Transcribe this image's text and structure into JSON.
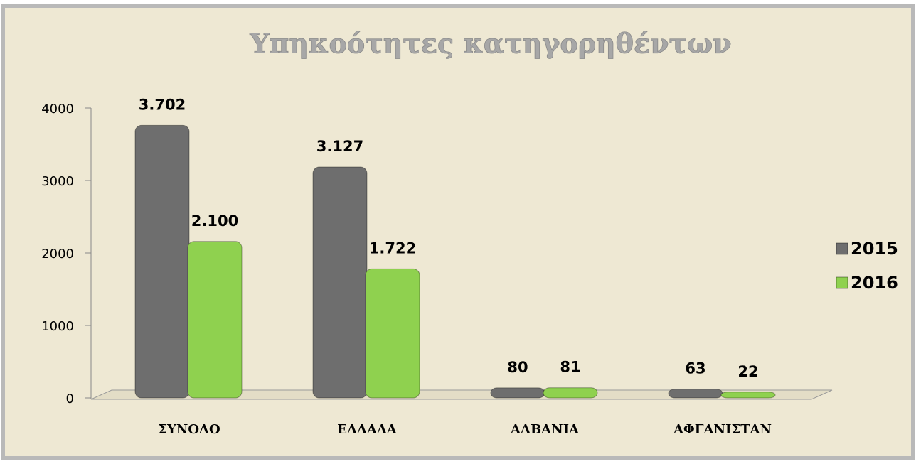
{
  "chart_data": {
    "type": "bar",
    "title": "Υπηκοότητες κατηγορηθέντων",
    "categories": [
      "ΣΥΝΟΛΟ",
      "ΕΛΛΑΔΑ",
      "ΑΛΒΑΝΙΑ",
      "ΑΦΓΑΝΙΣΤΑΝ"
    ],
    "series": [
      {
        "name": "2015",
        "color": "#6e6e6e",
        "values": [
          3702,
          3127,
          80,
          63
        ],
        "value_labels": [
          "3.702",
          "3.127",
          "80",
          "63"
        ]
      },
      {
        "name": "2016",
        "color": "#8fd14f",
        "values": [
          2100,
          1722,
          81,
          22
        ],
        "value_labels": [
          "2.100",
          "1.722",
          "81",
          "22"
        ]
      }
    ],
    "ylim": [
      0,
      4000
    ],
    "yticks": [
      0,
      1000,
      2000,
      3000,
      4000
    ],
    "grid": false,
    "legend": "right"
  }
}
